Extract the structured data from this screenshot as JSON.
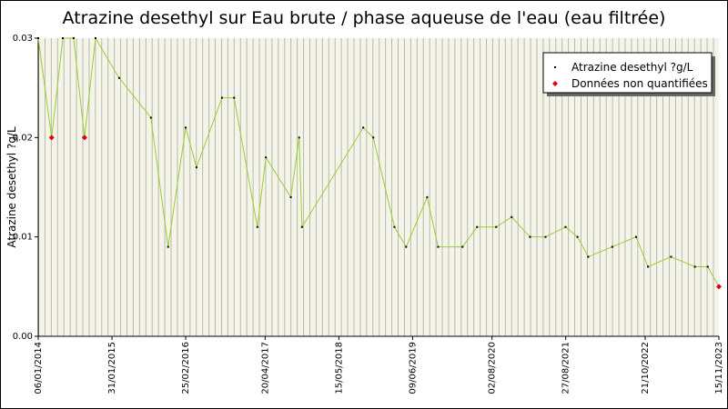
{
  "chart_data": {
    "type": "line",
    "title": "Atrazine desethyl sur Eau brute / phase aqueuse de l'eau (eau filtrée)",
    "y_label": "Atrazine desethyl ?g/L",
    "x": [
      "06/01/2014",
      "18/03/2014",
      "16/05/2014",
      "12/07/2014",
      "08/09/2014",
      "05/11/2014",
      "10/03/2015",
      "25/08/2015",
      "24/11/2015",
      "25/02/2016",
      "22/04/2016",
      "04/09/2016",
      "07/11/2016",
      "10/03/2017",
      "24/04/2017",
      "03/09/2017",
      "17/10/2017",
      "01/11/2017",
      "21/09/2018",
      "13/11/2018",
      "05/03/2019",
      "06/05/2019",
      "25/08/2019",
      "22/10/2019",
      "28/02/2020",
      "15/05/2020",
      "24/08/2020",
      "14/11/2020",
      "19/02/2021",
      "12/05/2021",
      "26/08/2021",
      "28/10/2021",
      "24/12/2021",
      "30/04/2022",
      "03/09/2022",
      "05/11/2022",
      "07/03/2023",
      "11/07/2023",
      "17/09/2023",
      "15/11/2023"
    ],
    "series": [
      {
        "name": "Atrazine desethyl ?g/L",
        "color": "#9acd32",
        "marker_color": "#000000",
        "values": [
          0.03,
          0.02,
          0.03,
          0.03,
          0.02,
          0.03,
          0.026,
          0.022,
          0.009,
          0.021,
          0.017,
          0.024,
          0.024,
          0.011,
          0.018,
          0.014,
          0.02,
          0.011,
          0.021,
          0.02,
          0.011,
          0.009,
          0.014,
          0.009,
          0.009,
          0.011,
          0.011,
          0.012,
          0.01,
          0.01,
          0.011,
          0.01,
          0.008,
          0.009,
          0.01,
          0.007,
          0.008,
          0.007,
          0.007,
          0.005
        ]
      },
      {
        "name": "Données non quantifiées",
        "color": "#e00000",
        "values": [
          null,
          0.02,
          null,
          null,
          0.02,
          null,
          null,
          null,
          null,
          null,
          null,
          null,
          null,
          null,
          null,
          null,
          null,
          null,
          null,
          null,
          null,
          null,
          null,
          null,
          null,
          null,
          null,
          null,
          null,
          null,
          null,
          null,
          null,
          null,
          null,
          null,
          null,
          null,
          null,
          0.005
        ]
      }
    ],
    "xlim": [
      "06/01/2014",
      "15/11/2023"
    ],
    "xticks": [
      "06/01/2014",
      "31/01/2015",
      "25/02/2016",
      "20/04/2017",
      "15/05/2018",
      "09/06/2019",
      "02/08/2020",
      "27/08/2021",
      "21/10/2022",
      "15/11/2023"
    ],
    "ylim": [
      0,
      0.03
    ],
    "yticks": [
      {
        "value": 0,
        "label": "0.00"
      },
      0.01,
      0.02,
      0.03
    ],
    "legend": "top-right"
  }
}
